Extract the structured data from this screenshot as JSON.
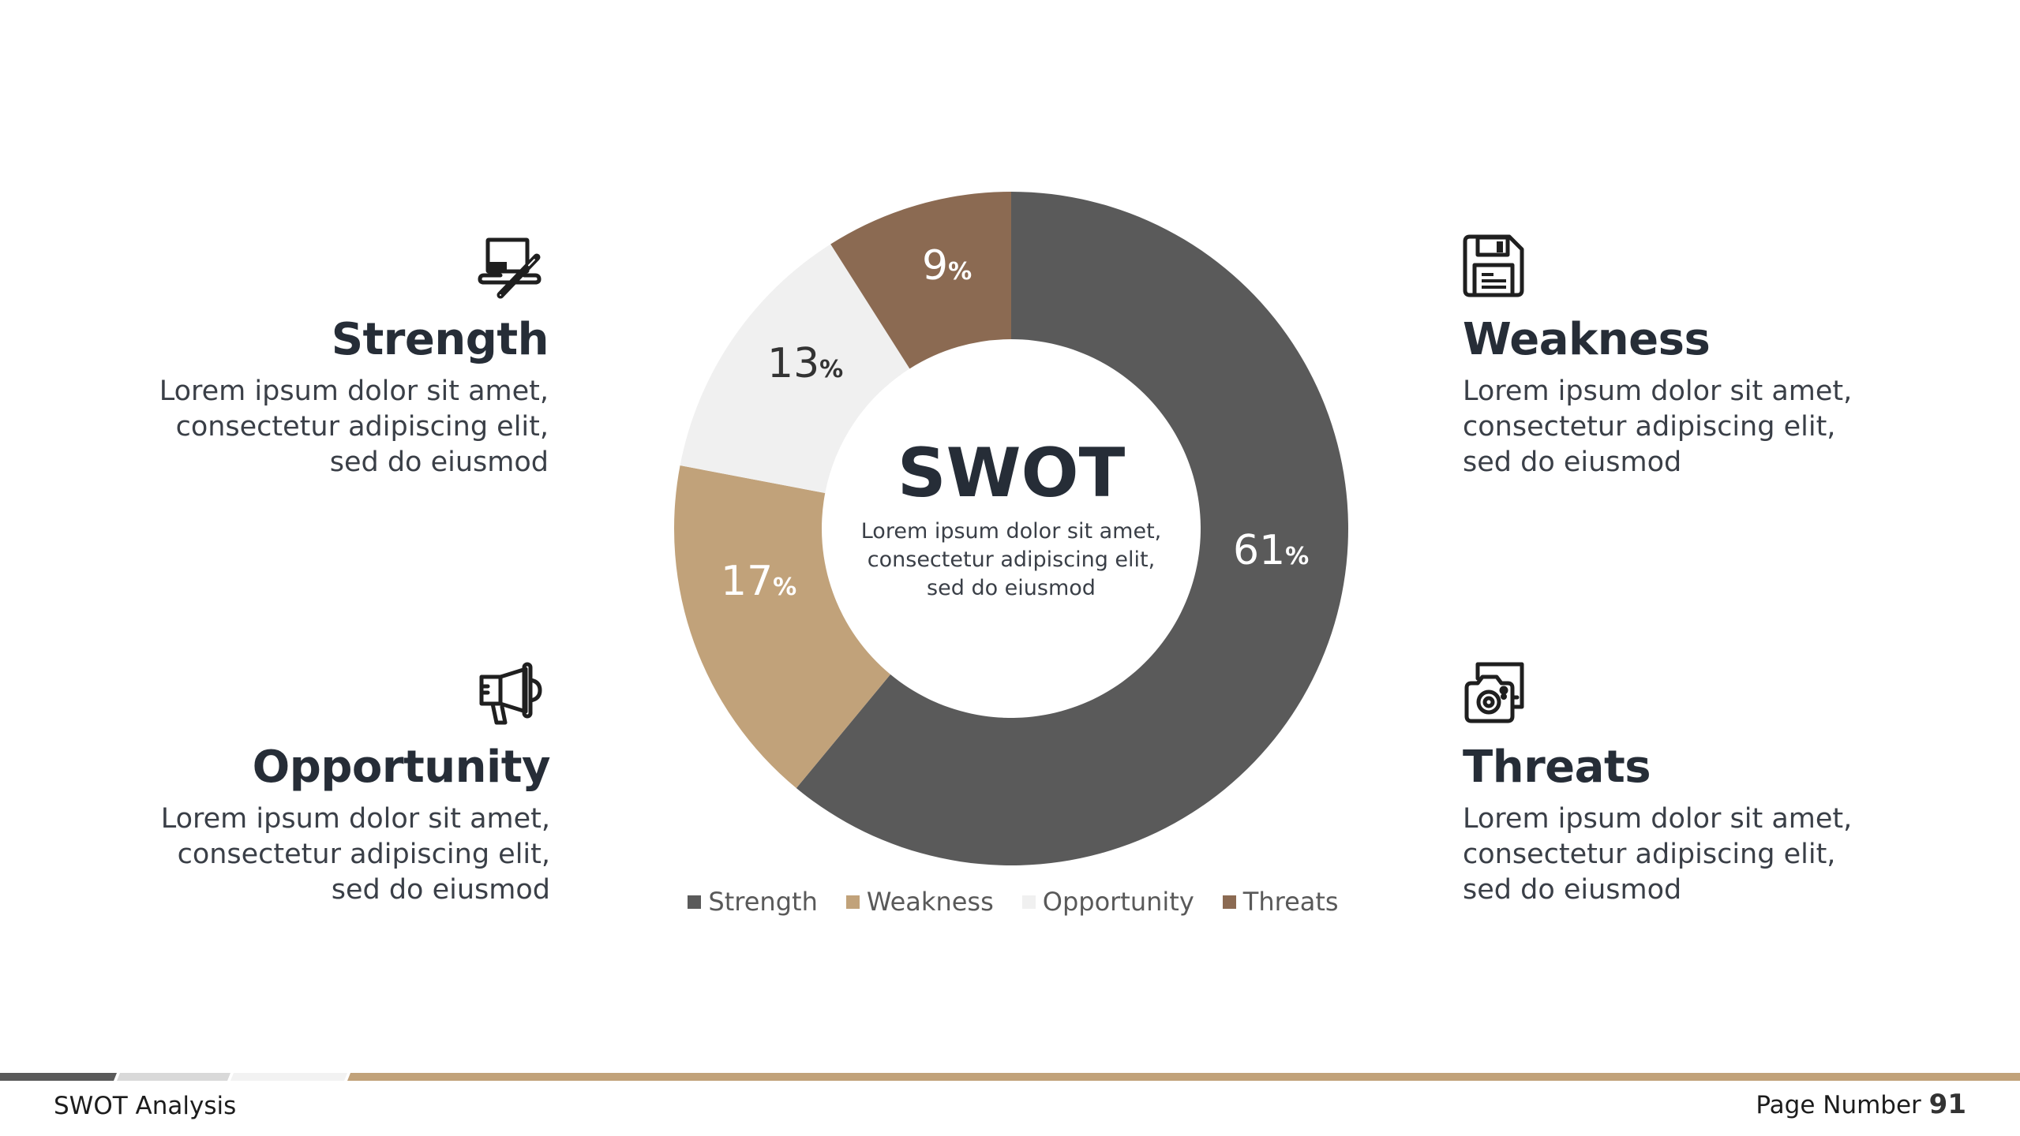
{
  "center": {
    "title": "SWOT",
    "description_lines": [
      "Lorem ipsum dolor sit amet,",
      "consectetur adipiscing elit,",
      "sed do eiusmod"
    ]
  },
  "quadrants": {
    "strength": {
      "icon": "laptop-magic-wand-icon",
      "title": "Strength",
      "lines": [
        "Lorem ipsum dolor sit amet,",
        "consectetur adipiscing elit,",
        "sed do eiusmod"
      ]
    },
    "weakness": {
      "icon": "floppy-disk-icon",
      "title": "Weakness",
      "lines": [
        "Lorem ipsum dolor sit amet,",
        "consectetur adipiscing elit,",
        "sed do eiusmod"
      ]
    },
    "opportunity": {
      "icon": "megaphone-icon",
      "title": "Opportunity",
      "lines": [
        "Lorem ipsum dolor sit amet,",
        "consectetur adipiscing elit,",
        "sed do eiusmod"
      ]
    },
    "threats": {
      "icon": "camera-photos-icon",
      "title": "Threats",
      "lines": [
        "Lorem ipsum dolor sit amet,",
        "consectetur adipiscing elit,",
        "sed do eiusmod"
      ]
    }
  },
  "labels": {
    "strength": {
      "value": "61",
      "symbol": "%"
    },
    "weakness": {
      "value": "17",
      "symbol": "%"
    },
    "opportunity": {
      "value": "13",
      "symbol": "%"
    },
    "threats": {
      "value": "9",
      "symbol": "%"
    }
  },
  "legend": [
    "Strength",
    "Weakness",
    "Opportunity",
    "Threats"
  ],
  "colors": {
    "strength": "#5a5a5a",
    "weakness": "#c1a27a",
    "opportunity": "#f0f0f0",
    "threats": "#8b6a52",
    "text_dark": "#262d37"
  },
  "footer": {
    "title": "SWOT Analysis",
    "page_label": "Page Number",
    "page_number": "91",
    "bar_colors": [
      "#5a5a5a",
      "#d9d9d9",
      "#f2f2f2",
      "#c1a27a"
    ]
  },
  "chart_data": {
    "type": "pie",
    "subtype": "donut",
    "title": "SWOT",
    "categories": [
      "Strength",
      "Weakness",
      "Opportunity",
      "Threats"
    ],
    "values": [
      61,
      17,
      13,
      9
    ],
    "unit": "%",
    "colors": [
      "#5a5a5a",
      "#c1a27a",
      "#f0f0f0",
      "#8b6a52"
    ],
    "start_angle": "12 o'clock, clockwise",
    "legend_position": "bottom",
    "data_labels": [
      "61%",
      "17%",
      "13%",
      "9%"
    ]
  }
}
